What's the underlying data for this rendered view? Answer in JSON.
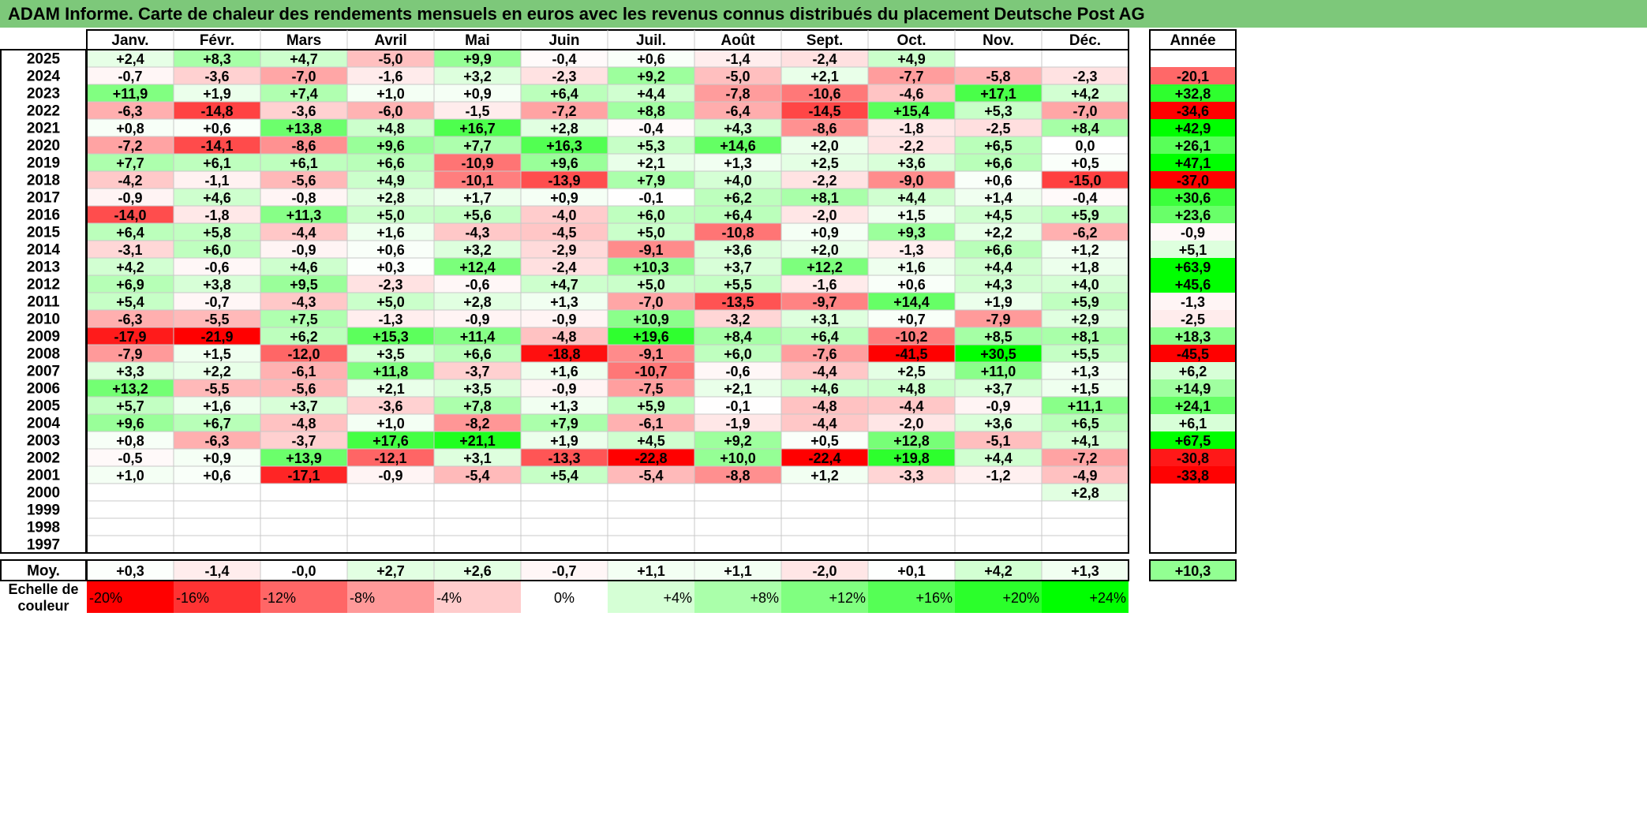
{
  "title": "ADAM Informe. Carte de chaleur des rendements mensuels en euros avec les revenus connus distribués du placement Deutsche Post AG",
  "colors": {
    "title_bg": "#7dc87a",
    "neg_max": "#ff0000",
    "pos_max": "#00ff00",
    "zero": "#ffffff"
  },
  "chart_data": {
    "type": "heatmap",
    "title": "ADAM Informe. Carte de chaleur des rendements mensuels en euros avec les revenus connus distribués du placement Deutsche Post AG",
    "months": [
      "Janv.",
      "Févr.",
      "Mars",
      "Avril",
      "Mai",
      "Juin",
      "Juil.",
      "Août",
      "Sept.",
      "Oct.",
      "Nov.",
      "Déc."
    ],
    "year_header": "Année",
    "avg_label": "Moy.",
    "scale_label_lines": [
      "Echelle de",
      "couleur"
    ],
    "rows": [
      {
        "year": "2025",
        "values": [
          "+2,4",
          "+8,3",
          "+4,7",
          "-5,0",
          "+9,9",
          "-0,4",
          "+0,6",
          "-1,4",
          "-2,4",
          "+4,9",
          "",
          ""
        ],
        "annual": ""
      },
      {
        "year": "2024",
        "values": [
          "-0,7",
          "-3,6",
          "-7,0",
          "-1,6",
          "+3,2",
          "-2,3",
          "+9,2",
          "-5,0",
          "+2,1",
          "-7,7",
          "-5,8",
          "-2,3"
        ],
        "annual": "-20,1"
      },
      {
        "year": "2023",
        "values": [
          "+11,9",
          "+1,9",
          "+7,4",
          "+1,0",
          "+0,9",
          "+6,4",
          "+4,4",
          "-7,8",
          "-10,6",
          "-4,6",
          "+17,1",
          "+4,2"
        ],
        "annual": "+32,8"
      },
      {
        "year": "2022",
        "values": [
          "-6,3",
          "-14,8",
          "-3,6",
          "-6,0",
          "-1,5",
          "-7,2",
          "+8,8",
          "-6,4",
          "-14,5",
          "+15,4",
          "+5,3",
          "-7,0"
        ],
        "annual": "-34,6"
      },
      {
        "year": "2021",
        "values": [
          "+0,8",
          "+0,6",
          "+13,8",
          "+4,8",
          "+16,7",
          "+2,8",
          "-0,4",
          "+4,3",
          "-8,6",
          "-1,8",
          "-2,5",
          "+8,4"
        ],
        "annual": "+42,9"
      },
      {
        "year": "2020",
        "values": [
          "-7,2",
          "-14,1",
          "-8,6",
          "+9,6",
          "+7,7",
          "+16,3",
          "+5,3",
          "+14,6",
          "+2,0",
          "-2,2",
          "+6,5",
          "0,0"
        ],
        "annual": "+26,1"
      },
      {
        "year": "2019",
        "values": [
          "+7,7",
          "+6,1",
          "+6,1",
          "+6,6",
          "-10,9",
          "+9,6",
          "+2,1",
          "+1,3",
          "+2,5",
          "+3,6",
          "+6,6",
          "+0,5"
        ],
        "annual": "+47,1"
      },
      {
        "year": "2018",
        "values": [
          "-4,2",
          "-1,1",
          "-5,6",
          "+4,9",
          "-10,1",
          "-13,9",
          "+7,9",
          "+4,0",
          "-2,2",
          "-9,0",
          "+0,6",
          "-15,0"
        ],
        "annual": "-37,0"
      },
      {
        "year": "2017",
        "values": [
          "-0,9",
          "+4,6",
          "-0,8",
          "+2,8",
          "+1,7",
          "+0,9",
          "-0,1",
          "+6,2",
          "+8,1",
          "+4,4",
          "+1,4",
          "-0,4"
        ],
        "annual": "+30,6"
      },
      {
        "year": "2016",
        "values": [
          "-14,0",
          "-1,8",
          "+11,3",
          "+5,0",
          "+5,6",
          "-4,0",
          "+6,0",
          "+6,4",
          "-2,0",
          "+1,5",
          "+4,5",
          "+5,9"
        ],
        "annual": "+23,6"
      },
      {
        "year": "2015",
        "values": [
          "+6,4",
          "+5,8",
          "-4,4",
          "+1,6",
          "-4,3",
          "-4,5",
          "+5,0",
          "-10,8",
          "+0,9",
          "+9,3",
          "+2,2",
          "-6,2"
        ],
        "annual": "-0,9"
      },
      {
        "year": "2014",
        "values": [
          "-3,1",
          "+6,0",
          "-0,9",
          "+0,6",
          "+3,2",
          "-2,9",
          "-9,1",
          "+3,6",
          "+2,0",
          "-1,3",
          "+6,6",
          "+1,2"
        ],
        "annual": "+5,1"
      },
      {
        "year": "2013",
        "values": [
          "+4,2",
          "-0,6",
          "+4,6",
          "+0,3",
          "+12,4",
          "-2,4",
          "+10,3",
          "+3,7",
          "+12,2",
          "+1,6",
          "+4,4",
          "+1,8"
        ],
        "annual": "+63,9"
      },
      {
        "year": "2012",
        "values": [
          "+6,9",
          "+3,8",
          "+9,5",
          "-2,3",
          "-0,6",
          "+4,7",
          "+5,0",
          "+5,5",
          "-1,6",
          "+0,6",
          "+4,3",
          "+4,0"
        ],
        "annual": "+45,6"
      },
      {
        "year": "2011",
        "values": [
          "+5,4",
          "-0,7",
          "-4,3",
          "+5,0",
          "+2,8",
          "+1,3",
          "-7,0",
          "-13,5",
          "-9,7",
          "+14,4",
          "+1,9",
          "+5,9"
        ],
        "annual": "-1,3"
      },
      {
        "year": "2010",
        "values": [
          "-6,3",
          "-5,5",
          "+7,5",
          "-1,3",
          "-0,9",
          "-0,9",
          "+10,9",
          "-3,2",
          "+3,1",
          "+0,7",
          "-7,9",
          "+2,9"
        ],
        "annual": "-2,5"
      },
      {
        "year": "2009",
        "values": [
          "-17,9",
          "-21,9",
          "+6,2",
          "+15,3",
          "+11,4",
          "-4,8",
          "+19,6",
          "+8,4",
          "+6,4",
          "-10,2",
          "+8,5",
          "+8,1"
        ],
        "annual": "+18,3"
      },
      {
        "year": "2008",
        "values": [
          "-7,9",
          "+1,5",
          "-12,0",
          "+3,5",
          "+6,6",
          "-18,8",
          "-9,1",
          "+6,0",
          "-7,6",
          "-41,5",
          "+30,5",
          "+5,5"
        ],
        "annual": "-45,5"
      },
      {
        "year": "2007",
        "values": [
          "+3,3",
          "+2,2",
          "-6,1",
          "+11,8",
          "-3,7",
          "+1,6",
          "-10,7",
          "-0,6",
          "-4,4",
          "+2,5",
          "+11,0",
          "+1,3"
        ],
        "annual": "+6,2"
      },
      {
        "year": "2006",
        "values": [
          "+13,2",
          "-5,5",
          "-5,6",
          "+2,1",
          "+3,5",
          "-0,9",
          "-7,5",
          "+2,1",
          "+4,6",
          "+4,8",
          "+3,7",
          "+1,5"
        ],
        "annual": "+14,9"
      },
      {
        "year": "2005",
        "values": [
          "+5,7",
          "+1,6",
          "+3,7",
          "-3,6",
          "+7,8",
          "+1,3",
          "+5,9",
          "-0,1",
          "-4,8",
          "-4,4",
          "-0,9",
          "+11,1"
        ],
        "annual": "+24,1"
      },
      {
        "year": "2004",
        "values": [
          "+9,6",
          "+6,7",
          "-4,8",
          "+1,0",
          "-8,2",
          "+7,9",
          "-6,1",
          "-1,9",
          "-4,4",
          "-2,0",
          "+3,6",
          "+6,5"
        ],
        "annual": "+6,1"
      },
      {
        "year": "2003",
        "values": [
          "+0,8",
          "-6,3",
          "-3,7",
          "+17,6",
          "+21,1",
          "+1,9",
          "+4,5",
          "+9,2",
          "+0,5",
          "+12,8",
          "-5,1",
          "+4,1"
        ],
        "annual": "+67,5"
      },
      {
        "year": "2002",
        "values": [
          "-0,5",
          "+0,9",
          "+13,9",
          "-12,1",
          "+3,1",
          "-13,3",
          "-22,8",
          "+10,0",
          "-22,4",
          "+19,8",
          "+4,4",
          "-7,2"
        ],
        "annual": "-30,8"
      },
      {
        "year": "2001",
        "values": [
          "+1,0",
          "+0,6",
          "-17,1",
          "-0,9",
          "-5,4",
          "+5,4",
          "-5,4",
          "-8,8",
          "+1,2",
          "-3,3",
          "-1,2",
          "-4,9"
        ],
        "annual": "-33,8"
      },
      {
        "year": "2000",
        "values": [
          "",
          "",
          "",
          "",
          "",
          "",
          "",
          "",
          "",
          "",
          "",
          "+2,8"
        ],
        "annual": ""
      },
      {
        "year": "1999",
        "values": [
          "",
          "",
          "",
          "",
          "",
          "",
          "",
          "",
          "",
          "",
          "",
          ""
        ],
        "annual": ""
      },
      {
        "year": "1998",
        "values": [
          "",
          "",
          "",
          "",
          "",
          "",
          "",
          "",
          "",
          "",
          "",
          ""
        ],
        "annual": ""
      },
      {
        "year": "1997",
        "values": [
          "",
          "",
          "",
          "",
          "",
          "",
          "",
          "",
          "",
          "",
          "",
          ""
        ],
        "annual": ""
      }
    ],
    "average": {
      "values": [
        "+0,3",
        "-1,4",
        "-0,0",
        "+2,7",
        "+2,6",
        "-0,7",
        "+1,1",
        "+1,1",
        "-2,0",
        "+0,1",
        "+4,2",
        "+1,3"
      ],
      "annual": "+10,3"
    },
    "scale": [
      {
        "label": "-20%",
        "value": -20
      },
      {
        "label": "-16%",
        "value": -16
      },
      {
        "label": "-12%",
        "value": -12
      },
      {
        "label": "-8%",
        "value": -8
      },
      {
        "label": "-4%",
        "value": -4
      },
      {
        "label": "0%",
        "value": 0
      },
      {
        "label": "+4%",
        "value": 4
      },
      {
        "label": "+8%",
        "value": 8
      },
      {
        "label": "+12%",
        "value": 12
      },
      {
        "label": "+16%",
        "value": 16
      },
      {
        "label": "+20%",
        "value": 20
      },
      {
        "label": "+24%",
        "value": 24
      }
    ]
  }
}
